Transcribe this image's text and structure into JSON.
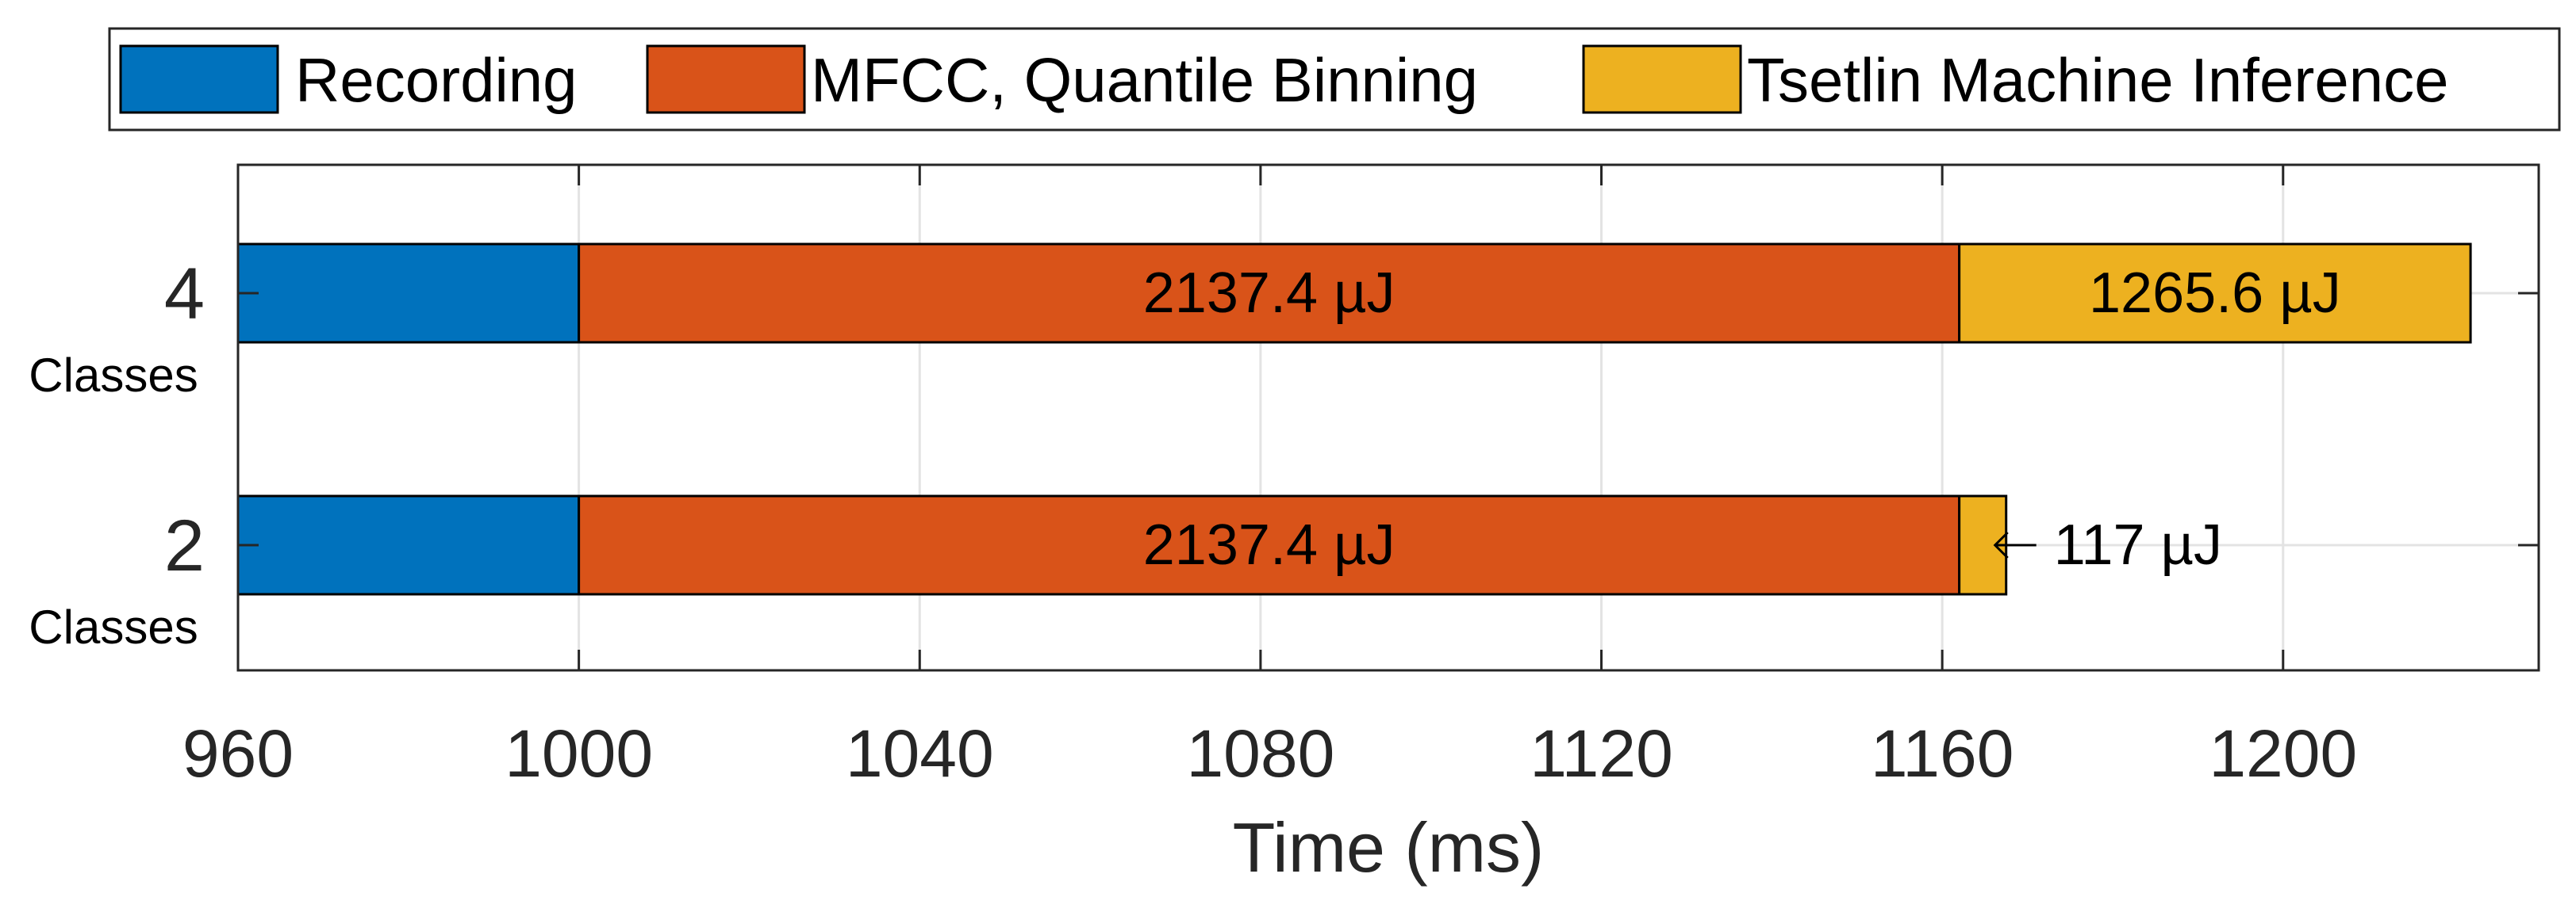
{
  "chart_data": {
    "type": "bar",
    "orientation": "horizontal",
    "stacked": true,
    "categories": [
      {
        "value": "4",
        "label": "Classes"
      },
      {
        "value": "2",
        "label": "Classes"
      }
    ],
    "series": [
      {
        "name": "Recording",
        "color": "#0072BD",
        "segments": [
          [
            960,
            1000
          ],
          [
            960,
            1000
          ]
        ],
        "labels": [
          "",
          ""
        ]
      },
      {
        "name": "MFCC, Quantile Binning",
        "color": "#D95319",
        "segments": [
          [
            1000,
            1162
          ],
          [
            1000,
            1162
          ]
        ],
        "labels": [
          "2137.4 µJ",
          "2137.4 µJ"
        ]
      },
      {
        "name": "Tsetlin Machine Inference",
        "color": "#EDB120",
        "segments": [
          [
            1162,
            1222
          ],
          [
            1162,
            1167.5
          ]
        ],
        "labels": [
          "1265.6 µJ",
          ""
        ]
      }
    ],
    "annotations": [
      {
        "text": "117 µJ",
        "category": "2",
        "arrow_to": 1167.5
      }
    ],
    "xlabel": "Time (ms)",
    "ylabel": "",
    "xlim": [
      960,
      1230
    ],
    "xticks": [
      960,
      1000,
      1040,
      1080,
      1120,
      1160,
      1200
    ],
    "grid": true,
    "legend_position": "top"
  }
}
